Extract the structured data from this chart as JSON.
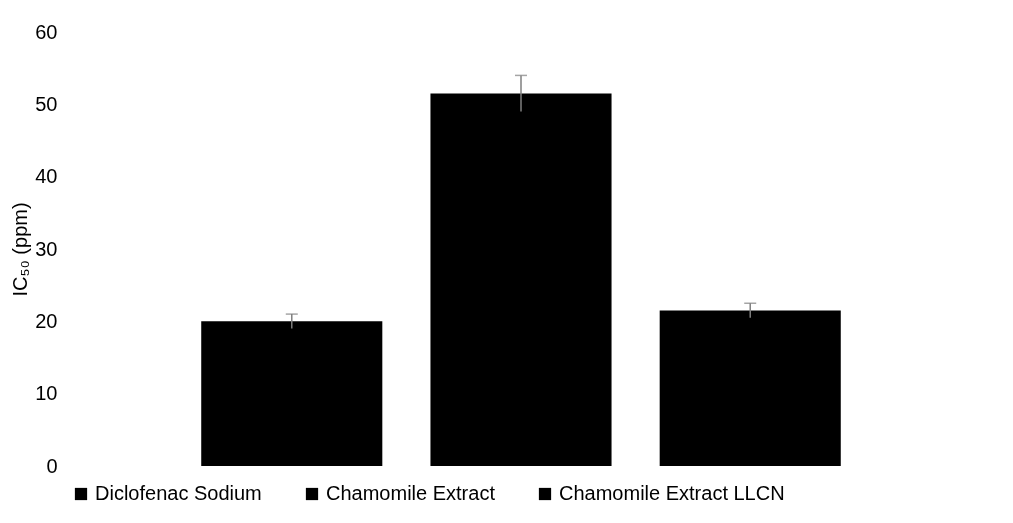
{
  "chart_data": {
    "type": "bar",
    "ylabel": "IC₅₀ (ppm)",
    "categories": [
      null
    ],
    "series": [
      {
        "name": "Diclofenac Sodium",
        "color": "#000000",
        "values": [
          20
        ],
        "errors": [
          1
        ]
      },
      {
        "name": "Chamomile Extract",
        "color": "#000000",
        "values": [
          51.5
        ],
        "errors": [
          2.5
        ]
      },
      {
        "name": "Chamomile Extract LLCN",
        "color": "#000000",
        "values": [
          21.5
        ],
        "errors": [
          1
        ]
      }
    ],
    "ylim": [
      0,
      60
    ],
    "yticks": [
      0,
      10,
      20,
      30,
      40,
      50,
      60
    ],
    "grid": false,
    "legend": "bottom",
    "tick_labels": "y"
  }
}
